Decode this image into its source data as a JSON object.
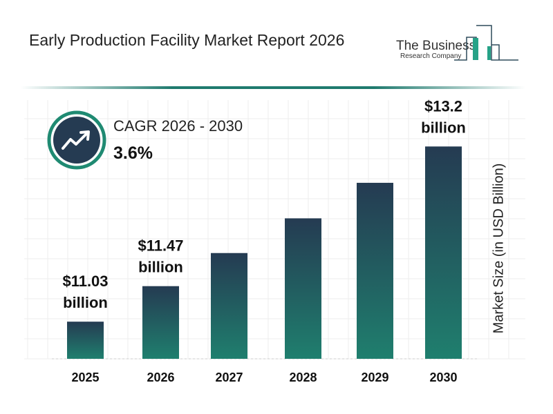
{
  "title": "Early Production Facility Market Report 2026",
  "logo": {
    "line1": "The Business",
    "line2": "Research Company"
  },
  "cagr": {
    "label": "CAGR 2026 - 2030",
    "value": "3.6%",
    "icon": "trending-up-icon"
  },
  "colors": {
    "bar_top": "#253b52",
    "bar_bottom": "#1f7f6e",
    "accent": "#1f8a72"
  },
  "chart_data": {
    "type": "bar",
    "categories": [
      "2025",
      "2026",
      "2027",
      "2028",
      "2029",
      "2030"
    ],
    "values": [
      11.03,
      11.47,
      11.88,
      12.31,
      12.75,
      13.2
    ],
    "data_labels": [
      {
        "index": 0,
        "line1": "$11.03",
        "line2": "billion"
      },
      {
        "index": 1,
        "line1": "$11.47",
        "line2": "billion"
      },
      {
        "index": 5,
        "line1": "$13.2",
        "line2": "billion"
      }
    ],
    "ylabel": "Market Size (in USD Billion)",
    "grid": true
  }
}
